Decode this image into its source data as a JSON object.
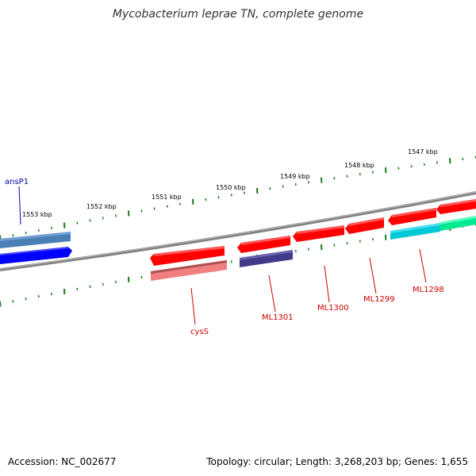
{
  "header": {
    "title": "Mycobacterium leprae TN, complete genome"
  },
  "footer": {
    "accession": "Accession: NC_002677",
    "summary": "Topology: circular; Length: 3,268,203 bp; Genes: 1,655"
  },
  "map": {
    "kbp_labels": [
      "1547 kbp",
      "1548 kbp",
      "1549 kbp",
      "1550 kbp",
      "1551 kbp",
      "1552 kbp",
      "1553 kbp"
    ],
    "gene_labels": [
      "ansP1",
      "cysS",
      "ML1301",
      "ML1300",
      "ML1299",
      "ML1298"
    ],
    "colors": {
      "forward_gene": "#ff0000",
      "reverse_gene": "#ff0000",
      "highlight_blue": "#0000ff",
      "steel_blue": "#4a7fb5",
      "navy": "#403a8a",
      "cyan": "#00c8d8",
      "green": "#00e890",
      "pink": "#f08080",
      "tick_green": "#1a7a1a",
      "backbone": "#808080",
      "label_red": "#cc0000",
      "label_blue": "#0000aa"
    }
  }
}
